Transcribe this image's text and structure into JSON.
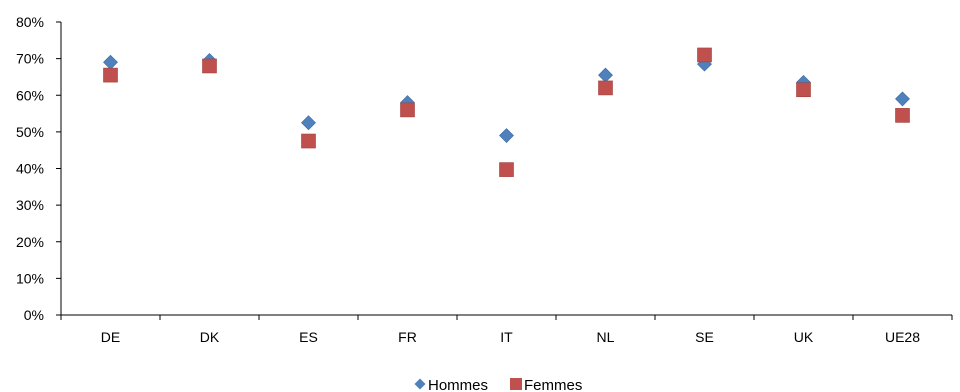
{
  "chart_data": {
    "type": "scatter",
    "title": "",
    "xlabel": "",
    "ylabel": "",
    "categories": [
      "DE",
      "DK",
      "ES",
      "FR",
      "IT",
      "NL",
      "SE",
      "UK",
      "UE28"
    ],
    "ylim": [
      0,
      0.8
    ],
    "y_ticks": [
      {
        "value": 0,
        "label": "0%"
      },
      {
        "value": 0.1,
        "label": "10%"
      },
      {
        "value": 0.2,
        "label": "20%"
      },
      {
        "value": 0.3,
        "label": "30%"
      },
      {
        "value": 0.4,
        "label": "40%"
      },
      {
        "value": 0.5,
        "label": "50%"
      },
      {
        "value": 0.6,
        "label": "60%"
      },
      {
        "value": 0.7,
        "label": "70%"
      },
      {
        "value": 0.8,
        "label": "80%"
      }
    ],
    "grid": false,
    "legend_position": "bottom",
    "series": [
      {
        "name": "Hommes",
        "marker": "diamond",
        "color": "#4F81BD",
        "values": [
          0.69,
          0.695,
          0.525,
          0.58,
          0.49,
          0.655,
          0.685,
          0.635,
          0.59
        ]
      },
      {
        "name": "Femmes",
        "marker": "square",
        "color": "#C0504D",
        "values": [
          0.655,
          0.68,
          0.475,
          0.56,
          0.397,
          0.62,
          0.71,
          0.615,
          0.545
        ]
      }
    ]
  }
}
